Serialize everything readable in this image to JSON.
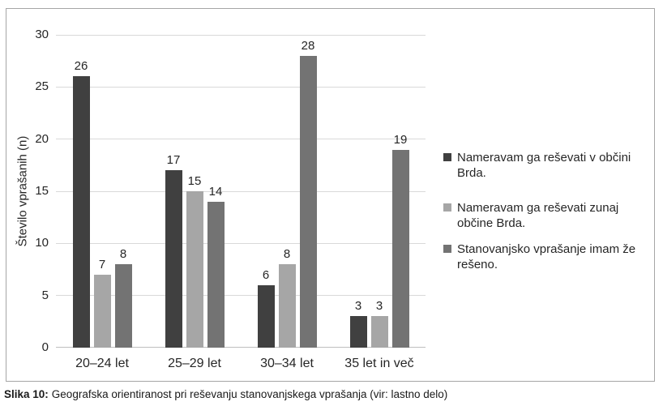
{
  "chart_data": {
    "type": "bar",
    "title": "",
    "xlabel": "",
    "ylabel": "Število vprašanih (n)",
    "categories": [
      "20–24 let",
      "25–29 let",
      "30–34 let",
      "35 let in več"
    ],
    "series": [
      {
        "name": "Nameravam ga reševati v občini Brda.",
        "color": "#404040",
        "values": [
          26,
          17,
          6,
          3
        ]
      },
      {
        "name": "Nameravam ga reševati zunaj občine Brda.",
        "color": "#a6a6a6",
        "values": [
          7,
          15,
          8,
          3
        ]
      },
      {
        "name": "Stanovanjsko vprašanje imam že rešeno.",
        "color": "#737373",
        "values": [
          8,
          14,
          28,
          19
        ]
      }
    ],
    "ylim": [
      0,
      30
    ],
    "yticks": [
      0,
      5,
      10,
      15,
      20,
      25,
      30
    ],
    "grid": true,
    "value_labels": true,
    "legend_position": "right",
    "colors": {
      "gridline": "#d9d9d9",
      "axis_line": "#bfbfbf",
      "frame_border": "#a6a6a6",
      "text": "#262626"
    }
  },
  "caption": {
    "label": "Slika 10:",
    "text": "Geografska orientiranost pri reševanju stanovanjskega vprašanja (vir: lastno delo)"
  }
}
